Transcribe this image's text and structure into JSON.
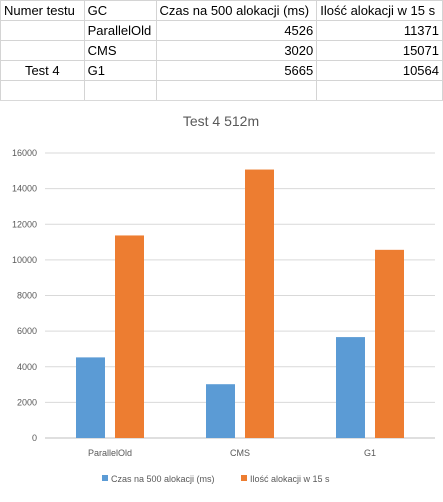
{
  "table": {
    "headers": [
      "Numer testu",
      "GC",
      "Czas na 500 alokacji (ms)",
      "Ilość alokacji w 15 s"
    ],
    "test_label": "Test 4",
    "rows": [
      {
        "gc": "ParallelOld",
        "czas": "4526",
        "ilosc": "11371"
      },
      {
        "gc": "CMS",
        "czas": "3020",
        "ilosc": "15071"
      },
      {
        "gc": "G1",
        "czas": "5665",
        "ilosc": "10564"
      }
    ]
  },
  "chart_data": {
    "type": "bar",
    "title": "Test 4 512m",
    "categories": [
      "ParallelOld",
      "CMS",
      "G1"
    ],
    "series": [
      {
        "name": "Czas na 500 alokacji (ms)",
        "values": [
          4526,
          3020,
          5665
        ],
        "color": "#5b9bd5"
      },
      {
        "name": "Ilość alokacji w 15 s",
        "values": [
          11371,
          15071,
          10564
        ],
        "color": "#ed7d31"
      }
    ],
    "ylim": [
      0,
      16000
    ],
    "yticks": [
      0,
      2000,
      4000,
      6000,
      8000,
      10000,
      12000,
      14000,
      16000
    ],
    "grid": true,
    "legend_position": "bottom",
    "xlabel": "",
    "ylabel": ""
  }
}
